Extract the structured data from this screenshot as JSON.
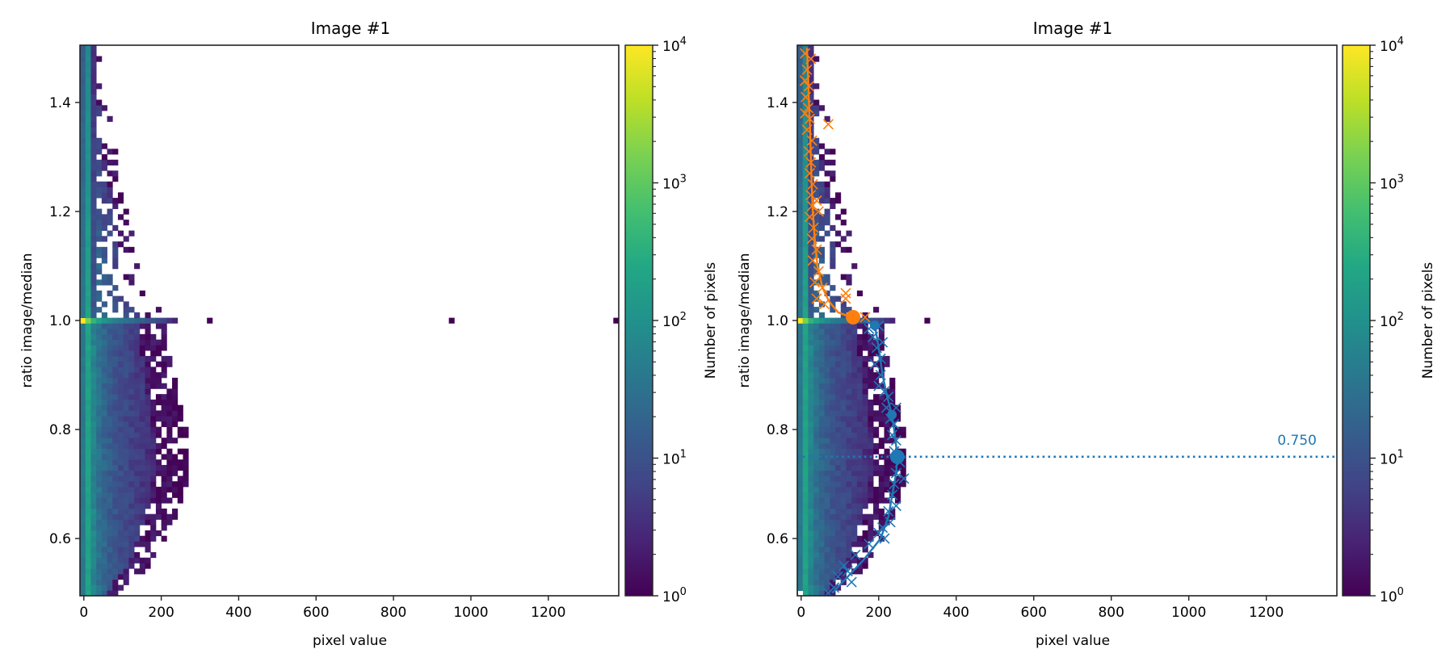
{
  "chart_data": [
    {
      "type": "heatmap",
      "title": "Image #1",
      "xlabel": "pixel value",
      "ylabel": "ratio image/median",
      "xlim": [
        -10,
        1382
      ],
      "ylim": [
        0.495,
        1.505
      ],
      "xticks": [
        0,
        200,
        400,
        600,
        800,
        1000,
        1200
      ],
      "xtick_labels": [
        "0",
        "200",
        "400",
        "600",
        "800",
        "1000",
        "1200"
      ],
      "yticks": [
        0.6,
        0.8,
        1.0,
        1.2,
        1.4
      ],
      "ytick_labels": [
        "0.6",
        "0.8",
        "1.0",
        "1.2",
        "1.4"
      ],
      "histogram": {
        "x_bin_width": 14,
        "y_bin_height": 0.01,
        "x_start": -10,
        "y_start": 0.495,
        "column_log10_counts": [
          1.6,
          2.3,
          1.8,
          1.5,
          1.3,
          1.15,
          1.05,
          0.95,
          0.85,
          0.8,
          0.7,
          0.65,
          0.55,
          0.5,
          0.4,
          0.3,
          0.2,
          0.1,
          0.0,
          0.0
        ],
        "ratio_1_row_log10_counts": [
          4.0,
          3.2,
          2.6,
          2.3,
          2.1,
          1.9,
          1.7,
          1.6,
          1.5,
          1.4,
          1.3,
          1.2,
          1.1,
          1.0,
          0.9,
          0.8,
          0.6,
          0.4
        ],
        "extent_profile": [
          [
            0.5,
            80
          ],
          [
            0.55,
            160
          ],
          [
            0.6,
            200
          ],
          [
            0.65,
            235
          ],
          [
            0.7,
            255
          ],
          [
            0.75,
            265
          ],
          [
            0.8,
            255
          ],
          [
            0.85,
            240
          ],
          [
            0.9,
            225
          ],
          [
            0.95,
            210
          ],
          [
            0.99,
            210
          ],
          [
            1.01,
            200
          ],
          [
            1.05,
            150
          ],
          [
            1.1,
            130
          ],
          [
            1.2,
            110
          ],
          [
            1.3,
            75
          ],
          [
            1.4,
            55
          ],
          [
            1.5,
            35
          ]
        ],
        "outliers": [
          [
            325,
            1.0
          ],
          [
            950,
            1.0
          ],
          [
            1375,
            1.0
          ]
        ]
      },
      "colorbar": {
        "label": "Number of pixels",
        "scale": "log",
        "range": [
          1,
          10000
        ],
        "tick_labels": [
          {
            "base": "10",
            "exp": "0",
            "value": 1
          },
          {
            "base": "10",
            "exp": "1",
            "value": 10
          },
          {
            "base": "10",
            "exp": "2",
            "value": 100
          },
          {
            "base": "10",
            "exp": "3",
            "value": 1000
          },
          {
            "base": "10",
            "exp": "4",
            "value": 10000
          }
        ]
      }
    },
    {
      "type": "heatmap",
      "title": "Image #1",
      "xlabel": "pixel value",
      "ylabel": "ratio image/median",
      "xlim": [
        -10,
        1382
      ],
      "ylim": [
        0.495,
        1.505
      ],
      "xticks": [
        0,
        200,
        400,
        600,
        800,
        1000,
        1200
      ],
      "xtick_labels": [
        "0",
        "200",
        "400",
        "600",
        "800",
        "1000",
        "1200"
      ],
      "yticks": [
        0.6,
        0.8,
        1.0,
        1.2,
        1.4
      ],
      "ytick_labels": [
        "0.6",
        "0.8",
        "1.0",
        "1.2",
        "1.4"
      ],
      "histogram_same_as_left": true,
      "series": [
        {
          "name": "upper",
          "color": "#ff7f0e",
          "curve": [
            [
              15,
              1.5
            ],
            [
              18,
              1.45
            ],
            [
              20,
              1.4
            ],
            [
              23,
              1.35
            ],
            [
              25,
              1.3
            ],
            [
              27,
              1.25
            ],
            [
              30,
              1.2
            ],
            [
              35,
              1.15
            ],
            [
              42,
              1.1
            ],
            [
              55,
              1.06
            ],
            [
              72,
              1.035
            ],
            [
              95,
              1.015
            ],
            [
              125,
              1.007
            ],
            [
              134,
              1.006
            ]
          ],
          "markers": [
            [
              134,
              1.006
            ]
          ],
          "crosses": [
            [
              10,
              1.49
            ],
            [
              25,
              1.48
            ],
            [
              15,
              1.46
            ],
            [
              10,
              1.44
            ],
            [
              20,
              1.43
            ],
            [
              12,
              1.41
            ],
            [
              18,
              1.39
            ],
            [
              10,
              1.38
            ],
            [
              22,
              1.37
            ],
            [
              15,
              1.35
            ],
            [
              28,
              1.33
            ],
            [
              20,
              1.31
            ],
            [
              25,
              1.29
            ],
            [
              22,
              1.27
            ],
            [
              30,
              1.25
            ],
            [
              25,
              1.23
            ],
            [
              28,
              1.21
            ],
            [
              22,
              1.19
            ],
            [
              32,
              1.17
            ],
            [
              28,
              1.15
            ],
            [
              40,
              1.13
            ],
            [
              30,
              1.11
            ],
            [
              45,
              1.09
            ],
            [
              35,
              1.07
            ],
            [
              55,
              1.06
            ],
            [
              40,
              1.04
            ],
            [
              60,
              1.03
            ],
            [
              115,
              1.05
            ],
            [
              115,
              1.04
            ],
            [
              165,
              1.006
            ],
            [
              70,
              1.36
            ],
            [
              10,
              1.44
            ],
            [
              45,
              1.2
            ],
            [
              40,
              1.22
            ]
          ]
        },
        {
          "name": "lower",
          "color": "#1f77b4",
          "curve": [
            [
              160,
              1.0
            ],
            [
              190,
              0.991
            ],
            [
              200,
              0.95
            ],
            [
              210,
              0.9
            ],
            [
              222,
              0.86
            ],
            [
              234,
              0.827
            ],
            [
              242,
              0.79
            ],
            [
              248,
              0.75
            ],
            [
              245,
              0.72
            ],
            [
              235,
              0.68
            ],
            [
              225,
              0.64
            ],
            [
              205,
              0.6
            ],
            [
              160,
              0.56
            ],
            [
              120,
              0.53
            ],
            [
              80,
              0.5
            ]
          ],
          "markers": [
            [
              190,
              0.991
            ],
            [
              234,
              0.827
            ],
            [
              248,
              0.75
            ]
          ],
          "crosses": [
            [
              175,
              0.985
            ],
            [
              200,
              0.99
            ],
            [
              185,
              0.97
            ],
            [
              210,
              0.96
            ],
            [
              195,
              0.95
            ],
            [
              205,
              0.93
            ],
            [
              190,
              0.92
            ],
            [
              205,
              0.9
            ],
            [
              200,
              0.88
            ],
            [
              215,
              0.87
            ],
            [
              225,
              0.86
            ],
            [
              220,
              0.84
            ],
            [
              245,
              0.84
            ],
            [
              230,
              0.82
            ],
            [
              240,
              0.81
            ],
            [
              235,
              0.79
            ],
            [
              245,
              0.78
            ],
            [
              240,
              0.76
            ],
            [
              255,
              0.74
            ],
            [
              245,
              0.72
            ],
            [
              265,
              0.71
            ],
            [
              240,
              0.7
            ],
            [
              235,
              0.68
            ],
            [
              245,
              0.66
            ],
            [
              225,
              0.65
            ],
            [
              230,
              0.63
            ],
            [
              210,
              0.62
            ],
            [
              215,
              0.6
            ],
            [
              200,
              0.61
            ],
            [
              175,
              0.59
            ],
            [
              140,
              0.57
            ],
            [
              110,
              0.55
            ],
            [
              120,
              0.54
            ],
            [
              95,
              0.53
            ],
            [
              130,
              0.52
            ],
            [
              85,
              0.51
            ],
            [
              70,
              0.5
            ]
          ],
          "hline": 0.75,
          "hline_label": "0.750"
        }
      ],
      "colorbar": {
        "label": "Number of pixels",
        "scale": "log",
        "range": [
          1,
          10000
        ],
        "tick_labels": [
          {
            "base": "10",
            "exp": "0",
            "value": 1
          },
          {
            "base": "10",
            "exp": "1",
            "value": 10
          },
          {
            "base": "10",
            "exp": "2",
            "value": 100
          },
          {
            "base": "10",
            "exp": "3",
            "value": 1000
          },
          {
            "base": "10",
            "exp": "4",
            "value": 10000
          }
        ]
      }
    }
  ]
}
